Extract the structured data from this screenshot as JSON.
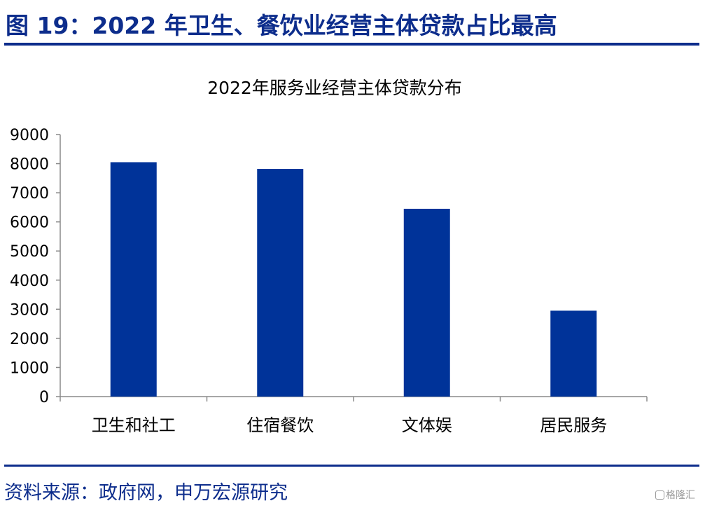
{
  "figure": {
    "title": "图 19：2022 年卫生、餐饮业经营主体贷款占比最高",
    "source": "资料来源：政府网，申万宏源研究",
    "watermark": "格隆汇"
  },
  "colors": {
    "bar": "#003399",
    "accent": "#0d2d8c",
    "axis": "#8a8a8a",
    "text": "#000000"
  },
  "chart_data": {
    "type": "bar",
    "title": "2022年服务业经营主体贷款分布",
    "categories": [
      "卫生和社工",
      "住宿餐饮",
      "文体娱",
      "居民服务"
    ],
    "values": [
      8050,
      7820,
      6450,
      2950
    ],
    "ylim": [
      0,
      9000
    ],
    "yticks": [
      0,
      1000,
      2000,
      3000,
      4000,
      5000,
      6000,
      7000,
      8000,
      9000
    ],
    "xlabel": "",
    "ylabel": "",
    "grid": false,
    "legend": "none"
  }
}
